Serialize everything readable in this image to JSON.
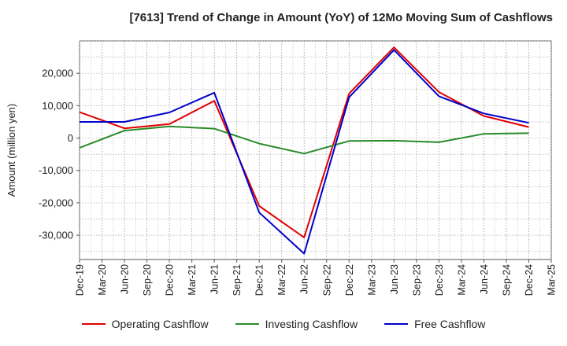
{
  "chart_data": {
    "type": "line",
    "title": "[7613]  Trend of Change in Amount (YoY) of 12Mo Moving Sum of Cashflows",
    "xlabel": "",
    "ylabel": "Amount (million yen)",
    "categories": [
      "Dec-19",
      "Mar-20",
      "Jun-20",
      "Sep-20",
      "Dec-20",
      "Mar-21",
      "Jun-21",
      "Sep-21",
      "Dec-21",
      "Mar-22",
      "Jun-22",
      "Sep-22",
      "Dec-22",
      "Mar-23",
      "Jun-23",
      "Sep-23",
      "Dec-23",
      "Mar-24",
      "Jun-24",
      "Sep-24",
      "Dec-24",
      "Mar-25"
    ],
    "ylim": [
      -37500,
      30000
    ],
    "yticks": [
      -30000,
      -20000,
      -10000,
      0,
      10000,
      20000
    ],
    "ytick_labels": [
      "-30,000",
      "-20,000",
      "-10,000",
      "0",
      "10,000",
      "20,000"
    ],
    "grid": true,
    "legend_position": "bottom",
    "series": [
      {
        "name": "Operating Cashflow",
        "color": "#e00000",
        "x": [
          "Dec-19",
          "Jun-20",
          "Dec-20",
          "Jun-21",
          "Dec-21",
          "Jun-22",
          "Dec-22",
          "Jun-23",
          "Dec-23",
          "Jun-24",
          "Dec-24"
        ],
        "values": [
          8000,
          3000,
          4300,
          11500,
          -21000,
          -30700,
          13700,
          28000,
          14200,
          6800,
          3400
        ]
      },
      {
        "name": "Investing Cashflow",
        "color": "#2a8a2a",
        "x": [
          "Dec-19",
          "Jun-20",
          "Dec-20",
          "Jun-21",
          "Dec-21",
          "Jun-22",
          "Dec-22",
          "Jun-23",
          "Dec-23",
          "Jun-24",
          "Dec-24"
        ],
        "values": [
          -3000,
          2300,
          3600,
          2900,
          -1700,
          -4800,
          -900,
          -800,
          -1300,
          1300,
          1500
        ]
      },
      {
        "name": "Free Cashflow",
        "color": "#0000cc",
        "x": [
          "Dec-19",
          "Jun-20",
          "Dec-20",
          "Jun-21",
          "Dec-21",
          "Jun-22",
          "Dec-22",
          "Jun-23",
          "Dec-23",
          "Jun-24",
          "Dec-24"
        ],
        "values": [
          5000,
          5000,
          7900,
          14000,
          -23000,
          -35700,
          12600,
          27200,
          12900,
          7600,
          4700
        ]
      }
    ]
  }
}
